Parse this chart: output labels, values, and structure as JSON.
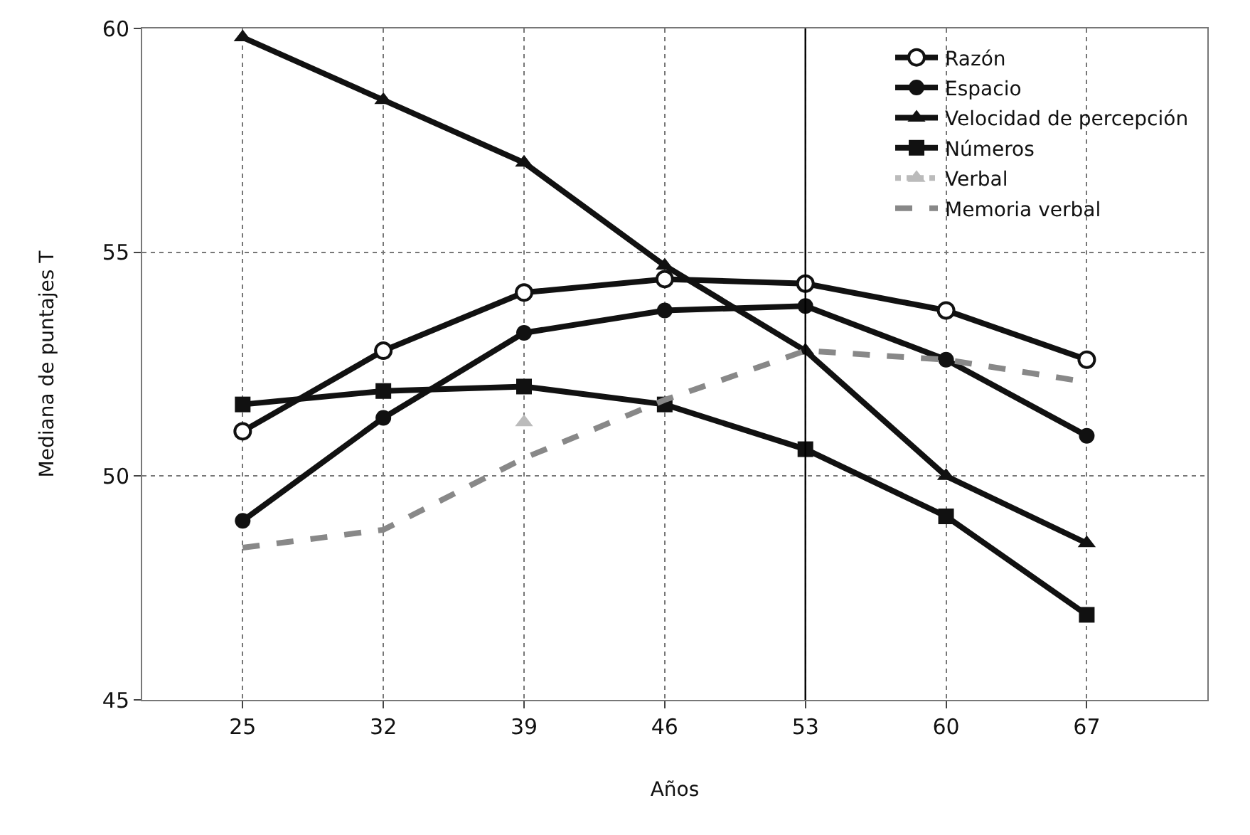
{
  "chart_data": {
    "type": "line",
    "xlabel": "Años",
    "ylabel": "Mediana de puntajes T",
    "x": [
      25,
      32,
      39,
      46,
      53,
      60,
      67
    ],
    "xlim": [
      20,
      73
    ],
    "xticks": [
      25,
      32,
      39,
      46,
      53,
      60,
      67
    ],
    "ylim": [
      45,
      60
    ],
    "yticks": [
      45,
      50,
      55,
      60
    ],
    "grid": true,
    "legend": "top right",
    "ref_lines": [
      {
        "axis": "x",
        "value": 53,
        "color": "#000000",
        "line_style": "solid"
      }
    ],
    "series": [
      {
        "name": "Razón",
        "color": "#111111",
        "marker": "circle",
        "line_style": "solid",
        "values": [
          51.0,
          52.8,
          54.1,
          54.4,
          54.3,
          53.7,
          52.6
        ]
      },
      {
        "name": "Espacio",
        "color": "#111111",
        "marker": "circle",
        "line_style": "solid",
        "values": [
          49.0,
          51.3,
          53.2,
          53.7,
          53.8,
          52.6,
          50.9
        ]
      },
      {
        "name": "Velocidad de percepción",
        "color": "#111111",
        "marker": "triangle",
        "line_style": "solid",
        "values": [
          59.8,
          58.4,
          57.0,
          54.7,
          52.8,
          50.0,
          48.5
        ]
      },
      {
        "name": "Números",
        "color": "#111111",
        "marker": "square",
        "line_style": "solid",
        "values": [
          51.6,
          51.9,
          52.0,
          51.6,
          50.6,
          49.1,
          46.9
        ]
      },
      {
        "name": "Verbal",
        "color": "#bbbbbb",
        "marker": "triangle",
        "line_style": "dotted",
        "values": [
          null,
          null,
          51.2,
          null,
          null,
          null,
          null
        ]
      },
      {
        "name": "Memoria verbal",
        "color": "#888888",
        "marker": "none",
        "line_style": "dashed",
        "values": [
          48.4,
          48.8,
          50.4,
          51.7,
          52.8,
          52.6,
          52.1
        ]
      }
    ]
  }
}
